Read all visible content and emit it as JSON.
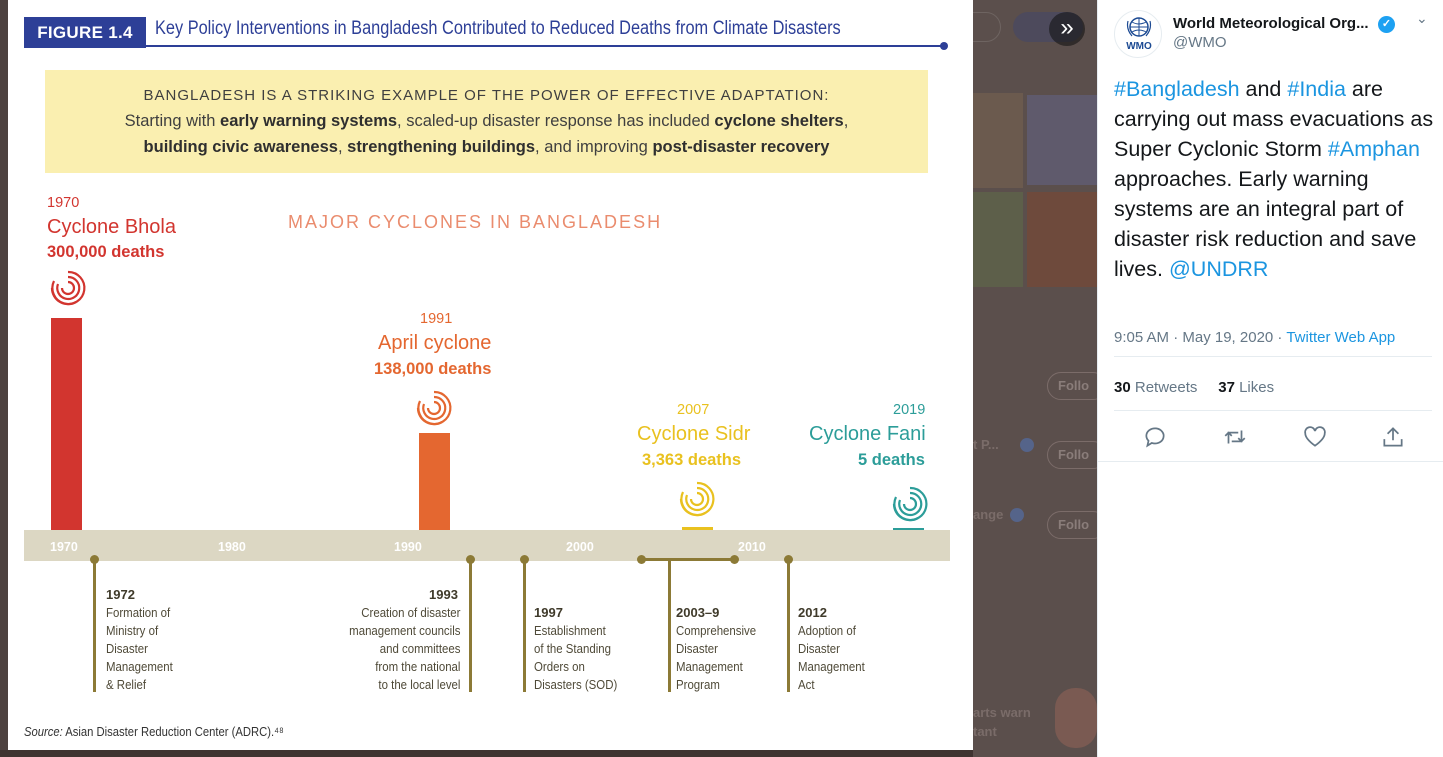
{
  "figure": {
    "label": "FIGURE 1.4",
    "title": "Key Policy Interventions in Bangladesh Contributed to Reduced Deaths from Climate Disasters",
    "callout": {
      "headline": "BANGLADESH IS A STRIKING EXAMPLE OF THE POWER OF EFFECTIVE ADAPTATION:",
      "line1_pre": "Starting with ",
      "line1_b1": "early warning systems",
      "line1_mid": ", scaled-up disaster response has included ",
      "line1_b2": "cyclone shelters",
      "line1_post": ",",
      "line2_b1": "building civic awareness",
      "line2_s1": ", ",
      "line2_b2": "strengthening buildings",
      "line2_mid": ", and improving ",
      "line2_b3": "post-disaster recovery"
    },
    "source_label": "Source:",
    "source_text": " Asian Disaster Reduction Center (ADRC).⁴⁸"
  },
  "chart_data": {
    "type": "bar",
    "title": "MAJOR CYCLONES IN BANGLADESH",
    "xlim": [
      1966,
      2021
    ],
    "x_ticks": [
      "1970",
      "1980",
      "1990",
      "2000",
      "2010"
    ],
    "cyclones": [
      {
        "year": "1970",
        "name": "Cyclone Bhola",
        "deaths_label": "300,000 deaths",
        "deaths": 300000,
        "color": "#d2352f"
      },
      {
        "year": "1991",
        "name": "April cyclone",
        "deaths_label": "138,000 deaths",
        "deaths": 138000,
        "color": "#e46730"
      },
      {
        "year": "2007",
        "name": "Cyclone Sidr",
        "deaths_label": "3,363 deaths",
        "deaths": 3363,
        "color": "#e9c11f"
      },
      {
        "year": "2019",
        "name": "Cyclone Fani",
        "deaths_label": "5 deaths",
        "deaths": 5,
        "color": "#2c9d99"
      }
    ],
    "events": [
      {
        "year": "1972",
        "lines": [
          "Formation of",
          "Ministry of",
          "Disaster",
          "Management",
          "& Relief"
        ]
      },
      {
        "year": "1993",
        "lines": [
          "Creation of disaster",
          "management councils",
          "and committees",
          "from the national",
          "to the local level"
        ]
      },
      {
        "year": "1997",
        "lines": [
          "Establishment",
          "of the Standing",
          "Orders on",
          "Disasters (SOD)"
        ]
      },
      {
        "year": "2003–9",
        "lines": [
          "Comprehensive",
          "Disaster",
          "Management",
          "Program"
        ]
      },
      {
        "year": "2012",
        "lines": [
          "Adoption of",
          "Disaster",
          "Management",
          "Act"
        ]
      }
    ]
  },
  "tweet": {
    "name": "World Meteorological Org...",
    "handle": "@WMO",
    "avatar_text": "WMO",
    "text": {
      "t1": "#Bangladesh",
      "t2": " and ",
      "t3": "#India",
      "t4": " are carrying out mass evacuations as Super Cyclonic Storm ",
      "t5": "#Amphan",
      "t6": " approaches. Early warning systems are an integral part of disaster risk reduction and save lives. ",
      "t7": "@UNDRR"
    },
    "time": "9:05 AM · May 19, 2020 · ",
    "app": "Twitter Web App",
    "retweets": "30",
    "retweets_label": " Retweets",
    "likes": "37",
    "likes_label": " Likes"
  },
  "background": {
    "follow_label": "Follo",
    "text1": "t P...",
    "text2": "ange",
    "text3": "arts warn",
    "text4": "tant"
  }
}
